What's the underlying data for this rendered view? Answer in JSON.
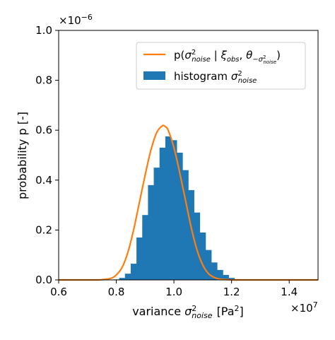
{
  "chart_data": {
    "type": "histogram+line",
    "title": "",
    "xlabel_prefix": "variance ",
    "xlabel_sym": "σ",
    "xlabel_sup": "2",
    "xlabel_sub": "noise",
    "xlabel_unit": "[Pa",
    "xlabel_unit_sup": "2",
    "xlabel_unit_close": "]",
    "ylabel": "probability p [-]",
    "x_offset_base": "×10",
    "x_offset_exp": "7",
    "y_offset_base": "×10",
    "y_offset_exp": "−6",
    "xlim": [
      0.6,
      1.5
    ],
    "ylim": [
      0.0,
      1.0
    ],
    "xticks": [
      0.6,
      0.8,
      1.0,
      1.2,
      1.4
    ],
    "xtick_labels": [
      "0.6",
      "0.8",
      "1.0",
      "1.2",
      "1.4"
    ],
    "yticks": [
      0.0,
      0.2,
      0.4,
      0.6,
      0.8,
      1.0
    ],
    "ytick_labels": [
      "0.0",
      "0.2",
      "0.4",
      "0.6",
      "0.8",
      "1.0"
    ],
    "legend_placement": "upper right",
    "legend": {
      "line_label_prefix": "p(",
      "line_label_sym": "σ",
      "line_label_sup": "2",
      "line_label_sub": "noise",
      "line_label_bar": " | ",
      "line_label_xi": "ξ",
      "line_label_xi_sub": "obs",
      "line_label_comma": ", ",
      "line_label_theta": "θ",
      "line_label_theta_sub": "−σ",
      "line_label_theta_sub_sub": "noise",
      "line_label_theta_sub_sup": "2",
      "line_label_suffix": ")",
      "hist_label_prefix": "histogram ",
      "hist_label_sym": "σ",
      "hist_label_sup": "2",
      "hist_label_sub": "noise"
    },
    "colors": {
      "line": "#ff7f0e",
      "hist": "#1f77b4"
    },
    "histogram": {
      "bin_edges": [
        0.79,
        0.81,
        0.83,
        0.85,
        0.87,
        0.89,
        0.91,
        0.93,
        0.95,
        0.97,
        0.99,
        1.01,
        1.03,
        1.05,
        1.07,
        1.09,
        1.11,
        1.13,
        1.15,
        1.17,
        1.19,
        1.21,
        1.23
      ],
      "values": [
        0.002,
        0.008,
        0.025,
        0.065,
        0.17,
        0.26,
        0.38,
        0.45,
        0.53,
        0.575,
        0.56,
        0.51,
        0.44,
        0.36,
        0.27,
        0.19,
        0.12,
        0.07,
        0.04,
        0.02,
        0.008,
        0.003
      ]
    },
    "density_curve": {
      "x": [
        0.74,
        0.78,
        0.8,
        0.82,
        0.84,
        0.86,
        0.88,
        0.9,
        0.92,
        0.94,
        0.96,
        0.97,
        0.98,
        1.0,
        1.02,
        1.04,
        1.06,
        1.08,
        1.1,
        1.12,
        1.14,
        1.16,
        1.2
      ],
      "y": [
        0.0,
        0.006,
        0.02,
        0.05,
        0.11,
        0.2,
        0.31,
        0.42,
        0.52,
        0.59,
        0.618,
        0.614,
        0.6,
        0.53,
        0.43,
        0.32,
        0.21,
        0.12,
        0.06,
        0.025,
        0.01,
        0.003,
        0.0
      ]
    }
  }
}
